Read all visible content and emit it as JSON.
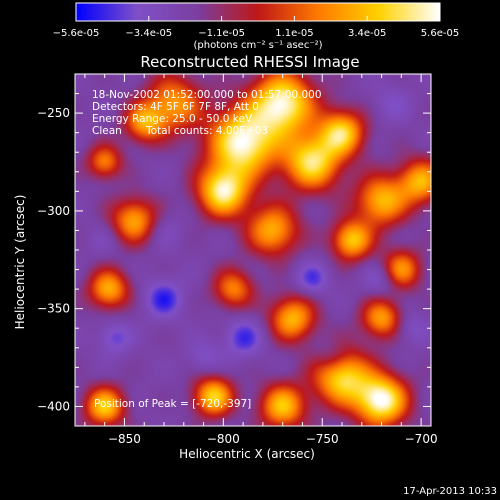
{
  "chart_data": {
    "type": "heatmap",
    "title": "Reconstructed RHESSI Image",
    "xlabel": "Heliocentric X (arcsec)",
    "ylabel": "Heliocentric Y (arcsec)",
    "xlim": [
      -875,
      -695
    ],
    "ylim": [
      -410,
      -230
    ],
    "x_ticks": [
      -850,
      -800,
      -750,
      -700
    ],
    "y_ticks": [
      -400,
      -350,
      -300,
      -250
    ],
    "colorbar": {
      "range": [
        -5.6e-05,
        5.6e-05
      ],
      "tick_labels": [
        "-5.6e-05",
        "-3.4e-05",
        "-1.1e-05",
        "1.1e-05",
        "3.4e-05",
        "5.6e-05"
      ],
      "unit_label": "(photons cm⁻² s⁻¹ asec⁻²)",
      "colormap": [
        "#0000ff",
        "#8050c8",
        "#7a3fa0",
        "#c01818",
        "#ff7a00",
        "#ffd200",
        "#ffffff"
      ]
    },
    "annotations": {
      "time": "18-Nov-2002 01:52:00.000 to 01:57:00.000",
      "detectors": "Detectors: 4F 5F 6F 7F 8F, Att 0",
      "energy": "Energy Range: 25.0 - 50.0 keV",
      "method": "Clean",
      "counts": "Total counts: 4.00E+03",
      "peak": "Position of Peak = [-720,-397]"
    },
    "peak_position": [
      -720,
      -397
    ],
    "blobs": [
      {
        "x": -790,
        "y": -265,
        "v": 5.5e-05,
        "s": 12
      },
      {
        "x": -770,
        "y": -245,
        "v": 5.3e-05,
        "s": 11
      },
      {
        "x": -800,
        "y": -290,
        "v": 4.8e-05,
        "s": 9
      },
      {
        "x": -755,
        "y": -275,
        "v": 4.4e-05,
        "s": 10
      },
      {
        "x": -740,
        "y": -260,
        "v": 3.8e-05,
        "s": 8
      },
      {
        "x": -720,
        "y": -295,
        "v": 3.2e-05,
        "s": 9
      },
      {
        "x": -775,
        "y": -310,
        "v": 3e-05,
        "s": 9
      },
      {
        "x": -735,
        "y": -315,
        "v": 3.6e-05,
        "s": 7
      },
      {
        "x": -825,
        "y": -245,
        "v": 2.5e-05,
        "s": 10
      },
      {
        "x": -720,
        "y": -397,
        "v": 5.6e-05,
        "s": 9
      },
      {
        "x": -740,
        "y": -385,
        "v": 4.2e-05,
        "s": 10
      },
      {
        "x": -770,
        "y": -400,
        "v": 3.4e-05,
        "s": 8
      },
      {
        "x": -805,
        "y": -395,
        "v": 3.8e-05,
        "s": 7
      },
      {
        "x": -860,
        "y": -400,
        "v": 3.6e-05,
        "s": 7
      },
      {
        "x": -845,
        "y": -305,
        "v": 2.8e-05,
        "s": 8
      },
      {
        "x": -858,
        "y": -340,
        "v": 3e-05,
        "s": 7
      },
      {
        "x": -765,
        "y": -355,
        "v": 3.1e-05,
        "s": 8
      },
      {
        "x": -720,
        "y": -355,
        "v": 2.6e-05,
        "s": 7
      },
      {
        "x": -700,
        "y": -285,
        "v": 3e-05,
        "s": 8
      },
      {
        "x": -710,
        "y": -330,
        "v": 2.4e-05,
        "s": 7
      },
      {
        "x": -795,
        "y": -340,
        "v": 2e-05,
        "s": 7
      },
      {
        "x": -840,
        "y": -255,
        "v": 2.4e-05,
        "s": 7
      },
      {
        "x": -860,
        "y": -275,
        "v": 2e-05,
        "s": 6
      },
      {
        "x": -830,
        "y": -345,
        "v": -4.8e-05,
        "s": 7
      },
      {
        "x": -855,
        "y": -365,
        "v": -4.2e-05,
        "s": 6
      },
      {
        "x": -790,
        "y": -365,
        "v": -4.6e-05,
        "s": 7
      },
      {
        "x": -755,
        "y": -335,
        "v": -4.4e-05,
        "s": 6
      },
      {
        "x": -720,
        "y": -335,
        "v": -4e-05,
        "s": 6
      },
      {
        "x": -745,
        "y": -375,
        "v": -3.8e-05,
        "s": 6
      },
      {
        "x": -810,
        "y": -375,
        "v": -3.6e-05,
        "s": 6
      },
      {
        "x": -830,
        "y": -310,
        "v": -3.2e-05,
        "s": 7
      },
      {
        "x": -715,
        "y": -245,
        "v": -3.4e-05,
        "s": 7
      },
      {
        "x": -705,
        "y": -360,
        "v": -3.6e-05,
        "s": 6
      },
      {
        "x": -860,
        "y": -315,
        "v": -3e-05,
        "s": 6
      }
    ]
  },
  "footer": {
    "timestamp": "17-Apr-2013 10:33"
  }
}
